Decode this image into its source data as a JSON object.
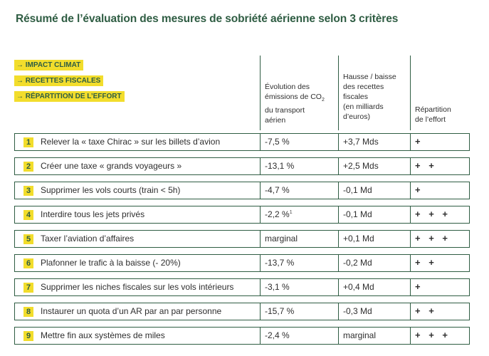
{
  "title": "Résumé de l’évaluation des mesures de sobriété aérienne selon 3 critères",
  "legend": [
    "→ IMPACT CLIMAT",
    "→ RECETTES FISCALES",
    "→ RÉPARTITION DE L’EFFORT"
  ],
  "columns": {
    "emissions_a": "Évolution des",
    "emissions_b": "émissions de CO",
    "emissions_sub": "2",
    "emissions_c": "du transport",
    "emissions_d": "aérien",
    "recettes_a": "Hausse / baisse",
    "recettes_b": "des recettes",
    "recettes_c": "fiscales",
    "recettes_d": "(en milliards",
    "recettes_e": "d’euros)",
    "effort_a": "Répartition",
    "effort_b": "de l’effort"
  },
  "rows": [
    {
      "num": "1",
      "label": "Relever la « taxe Chirac » sur les billets d’avion",
      "emissions": "-7,5 %",
      "note": "",
      "recettes": "+3,7 Mds",
      "effort": "+"
    },
    {
      "num": "2",
      "label": "Créer une taxe « grands voyageurs »",
      "emissions": "-13,1 %",
      "note": "",
      "recettes": "+2,5 Mds",
      "effort": "+ +"
    },
    {
      "num": "3",
      "label": "Supprimer les vols courts (train < 5h)",
      "emissions": "-4,7 %",
      "note": "",
      "recettes": "-0,1 Md",
      "effort": "+"
    },
    {
      "num": "4",
      "label": " Interdire tous les jets privés",
      "emissions": "-2,2 %",
      "note": "1",
      "recettes": "-0,1 Md",
      "effort": "+ + +"
    },
    {
      "num": "5",
      "label": "Taxer l’aviation d’affaires",
      "emissions": "marginal",
      "note": "",
      "recettes": "+0,1 Md",
      "effort": "+ + +"
    },
    {
      "num": "6",
      "label": "Plafonner le trafic à la baisse (- 20%)",
      "emissions": "-13,7 %",
      "note": "",
      "recettes": "-0,2 Md",
      "effort": "+ +"
    },
    {
      "num": "7",
      "label": "Supprimer les niches fiscales sur les vols intérieurs",
      "emissions": "-3,1 %",
      "note": "",
      "recettes": "+0,4 Md",
      "effort": "+"
    },
    {
      "num": "8",
      "label": "Instaurer un quota d’un AR par an par personne",
      "emissions": "-15,7 %",
      "note": "",
      "recettes": "-0,3 Md",
      "effort": "+ +"
    },
    {
      "num": "9",
      "label": "Mettre fin aux systèmes de miles",
      "emissions": "-2,4 %",
      "note": "",
      "recettes": "marginal",
      "effort": "+ + +"
    }
  ]
}
